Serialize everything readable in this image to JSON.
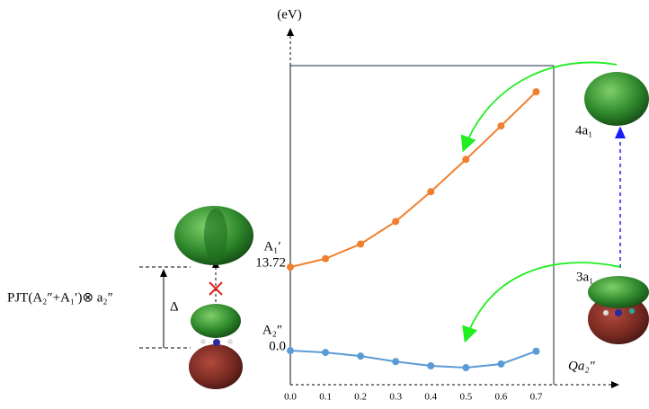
{
  "chart_data": {
    "type": "line",
    "y_label": "(eV)",
    "x_label": "Qa₂″",
    "x": [
      0,
      0.1,
      0.2,
      0.3,
      0.4,
      0.5,
      0.6,
      0.7
    ],
    "series": [
      {
        "name": "A₁′",
        "color": "#f0802f",
        "values": [
          13.72,
          15.1,
          17.5,
          21.2,
          26.1,
          31.4,
          36.9,
          42.5
        ]
      },
      {
        "name": "A₂″",
        "color": "#5b9bd5",
        "values": [
          0,
          -0.3,
          -0.9,
          -1.8,
          -2.5,
          -2.8,
          -2.2,
          -0.1
        ],
        "value_labels": [
          "0.0",
          null,
          null,
          null,
          null,
          null,
          null,
          null
        ]
      }
    ],
    "xlim": [
      0,
      0.75
    ],
    "ylim": [
      -5.6,
      46.8
    ],
    "xticks": [
      {
        "value": 0,
        "label": "0.0"
      },
      0.1,
      0.2,
      0.3,
      0.4,
      0.5,
      0.6,
      0.7
    ],
    "annotations": {
      "orbital_upper": "4a₁",
      "orbital_lower": "3a₁",
      "pjt": "PJT(A₂″+A₁′)⊗ a₂″",
      "gap": "Δ"
    }
  }
}
